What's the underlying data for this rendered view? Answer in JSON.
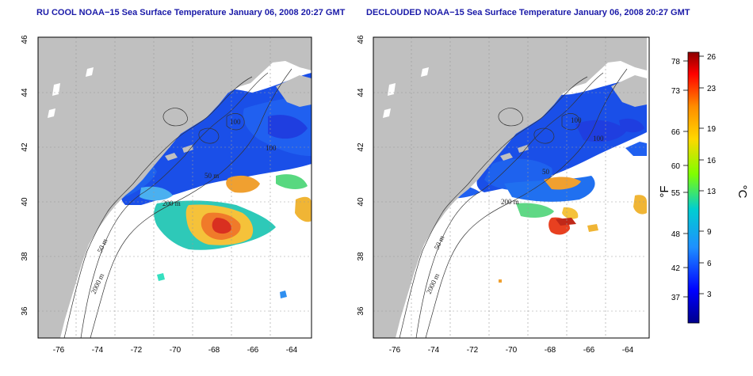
{
  "panels": [
    {
      "title": "RU COOL NOAA−15 Sea Surface Temperature January 06, 2008 20:27 GMT",
      "contour_labels": [
        "100",
        "100",
        "50 m",
        "200 m",
        "50 m",
        "2000 m"
      ]
    },
    {
      "title": "DECLOUDED NOAA−15 Sea Surface Temperature January 06, 2008 20:27 GMT",
      "contour_labels": [
        "100",
        "100",
        "50",
        "200 m",
        "50 m",
        "2000 m"
      ]
    }
  ],
  "map": {
    "lon_ticks": [
      "-76",
      "-74",
      "-72",
      "-70",
      "-68",
      "-66",
      "-64"
    ],
    "lat_ticks": [
      "46",
      "44",
      "42",
      "40",
      "38",
      "36"
    ]
  },
  "colorbar": {
    "fahrenheit_ticks": [
      "78",
      "73",
      "66",
      "60",
      "55",
      "48",
      "42",
      "37"
    ],
    "celsius_ticks": [
      "26",
      "23",
      "19",
      "16",
      "13",
      "9",
      "6",
      "3"
    ],
    "unit_f": "°F",
    "unit_c": "°C",
    "colors": [
      "#00008b",
      "#0000ff",
      "#1e90ff",
      "#00ced1",
      "#7fff00",
      "#ffd700",
      "#ff8c00",
      "#ff0000",
      "#8b0000"
    ]
  },
  "colors": {
    "land": "#c0c0c0",
    "water_nodata": "#ffffff",
    "title": "#1a1aa8",
    "grid": "#9a9a9a"
  }
}
